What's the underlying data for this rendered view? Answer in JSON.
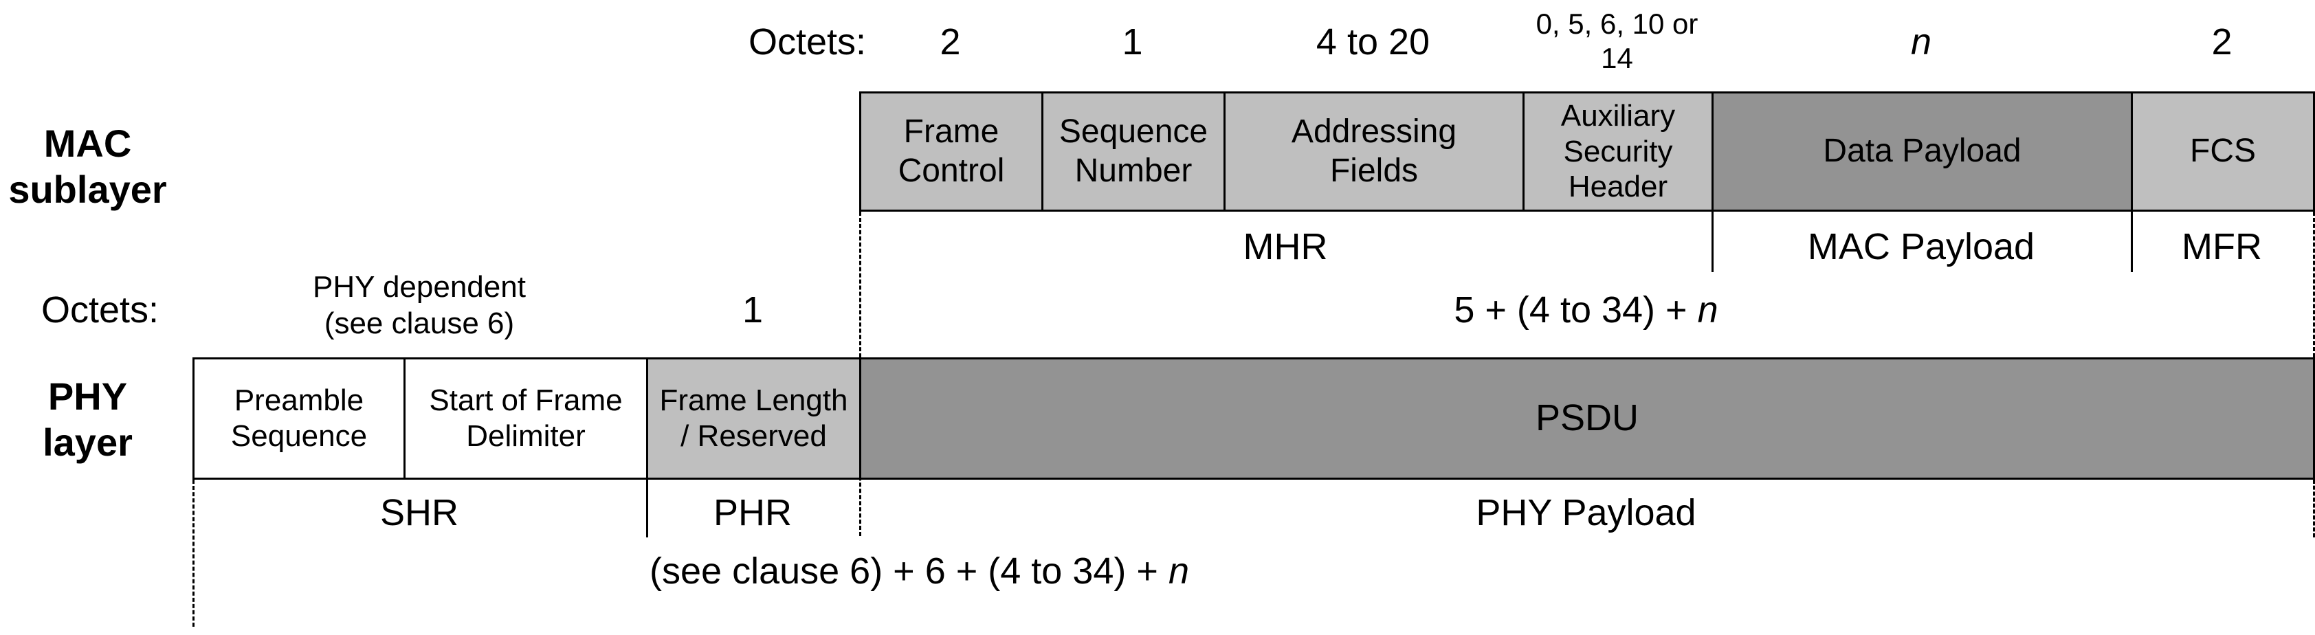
{
  "layers": {
    "mac": "MAC\nsublayer",
    "phy": "PHY\nlayer"
  },
  "mac": {
    "octets_label": "Octets:",
    "octets": [
      "2",
      "1",
      "4 to 20",
      "0, 5, 6, 10 or\n14",
      "n",
      "2"
    ],
    "fields": [
      "Frame\nControl",
      "Sequence\nNumber",
      "Addressing\nFields",
      "Auxiliary\nSecurity\nHeader",
      "Data Payload",
      "FCS"
    ],
    "groups": [
      "MHR",
      "MAC Payload",
      "MFR"
    ]
  },
  "phy": {
    "octets_label": "Octets:",
    "octets": [
      "PHY dependent\n(see clause 6)",
      "1",
      "5 + (4 to 34) + ",
      "n"
    ],
    "fields": [
      "Preamble\nSequence",
      "Start of Frame\nDelimiter",
      "Frame Length\n/ Reserved",
      "PSDU"
    ],
    "groups": [
      "SHR",
      "PHR",
      "PHY Payload"
    ],
    "total": [
      "(see clause 6) + 6 + (4 to 34) + ",
      "n"
    ]
  },
  "colors": {
    "header_fields": "#bfbfbf",
    "payload_fields": "#939393",
    "phy_shr": "#ffffff"
  }
}
